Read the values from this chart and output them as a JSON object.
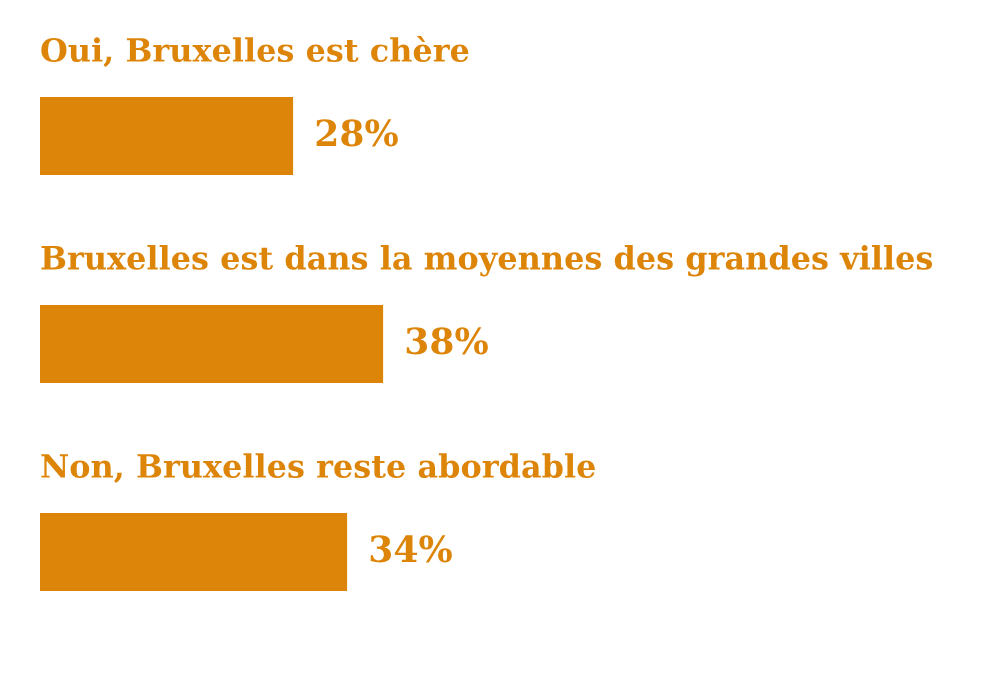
{
  "chart_data": {
    "type": "bar",
    "orientation": "horizontal",
    "categories": [
      "Oui, Bruxelles est chère",
      "Bruxelles est dans la moyennes des grandes villes",
      "Non, Bruxelles reste abordable"
    ],
    "values": [
      28,
      38,
      34
    ],
    "value_labels": [
      "28%",
      "38%",
      "34%"
    ],
    "color": "#dd8508",
    "tick_labels": false
  }
}
